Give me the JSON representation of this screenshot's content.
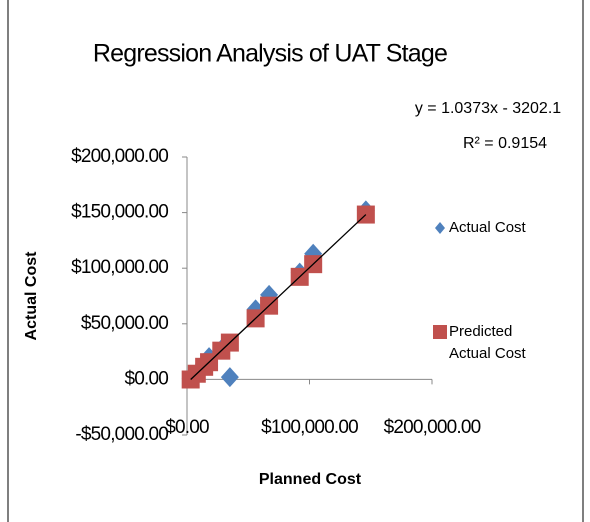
{
  "chart_data": {
    "type": "scatter",
    "title": "Regression Analysis of UAT Stage",
    "x_label": "Planned Cost",
    "y_label": "Actual Cost",
    "annotations": [
      "y = 1.0373x - 3202.1",
      "R² = 0.9154"
    ],
    "xlim": [
      0,
      200000
    ],
    "xticks": [
      {
        "value": 0,
        "label": "$0.00"
      },
      {
        "value": 100000,
        "label": "$100,000.00"
      },
      {
        "value": 200000,
        "label": "$200,000.00"
      }
    ],
    "ylim": [
      -50000,
      200000
    ],
    "yticks": [
      {
        "value": -50000,
        "label": "-$50,000.00"
      },
      {
        "value": 0,
        "label": "$0.00"
      },
      {
        "value": 50000,
        "label": "$50,000.00"
      },
      {
        "value": 100000,
        "label": "$100,000.00"
      },
      {
        "value": 150000,
        "label": "$150,000.00"
      },
      {
        "value": 200000,
        "label": "$200,000.00"
      }
    ],
    "series": [
      {
        "name": "Actual Cost",
        "color": "#4f81bd",
        "marker": "diamond",
        "x": [
          3000,
          8000,
          14000,
          18000,
          28000,
          35000,
          56000,
          67000,
          92000,
          103000,
          146000
        ],
        "values": [
          1000,
          6000,
          14000,
          20000,
          27000,
          2000,
          63000,
          76000,
          96000,
          113000,
          152000
        ]
      },
      {
        "name": "Predicted Actual Cost",
        "color": "#c0504d",
        "marker": "square",
        "x": [
          3000,
          8000,
          14000,
          18000,
          28000,
          35000,
          56000,
          67000,
          92000,
          103000,
          146000
        ],
        "values": [
          -90,
          5096,
          11320,
          15469,
          25842,
          33103,
          54887,
          66297,
          92229,
          103640,
          148244
        ]
      }
    ],
    "trendline": {
      "color": "#000000",
      "x": [
        3000,
        146000
      ],
      "values": [
        -90,
        148244
      ]
    },
    "legend": "right"
  }
}
